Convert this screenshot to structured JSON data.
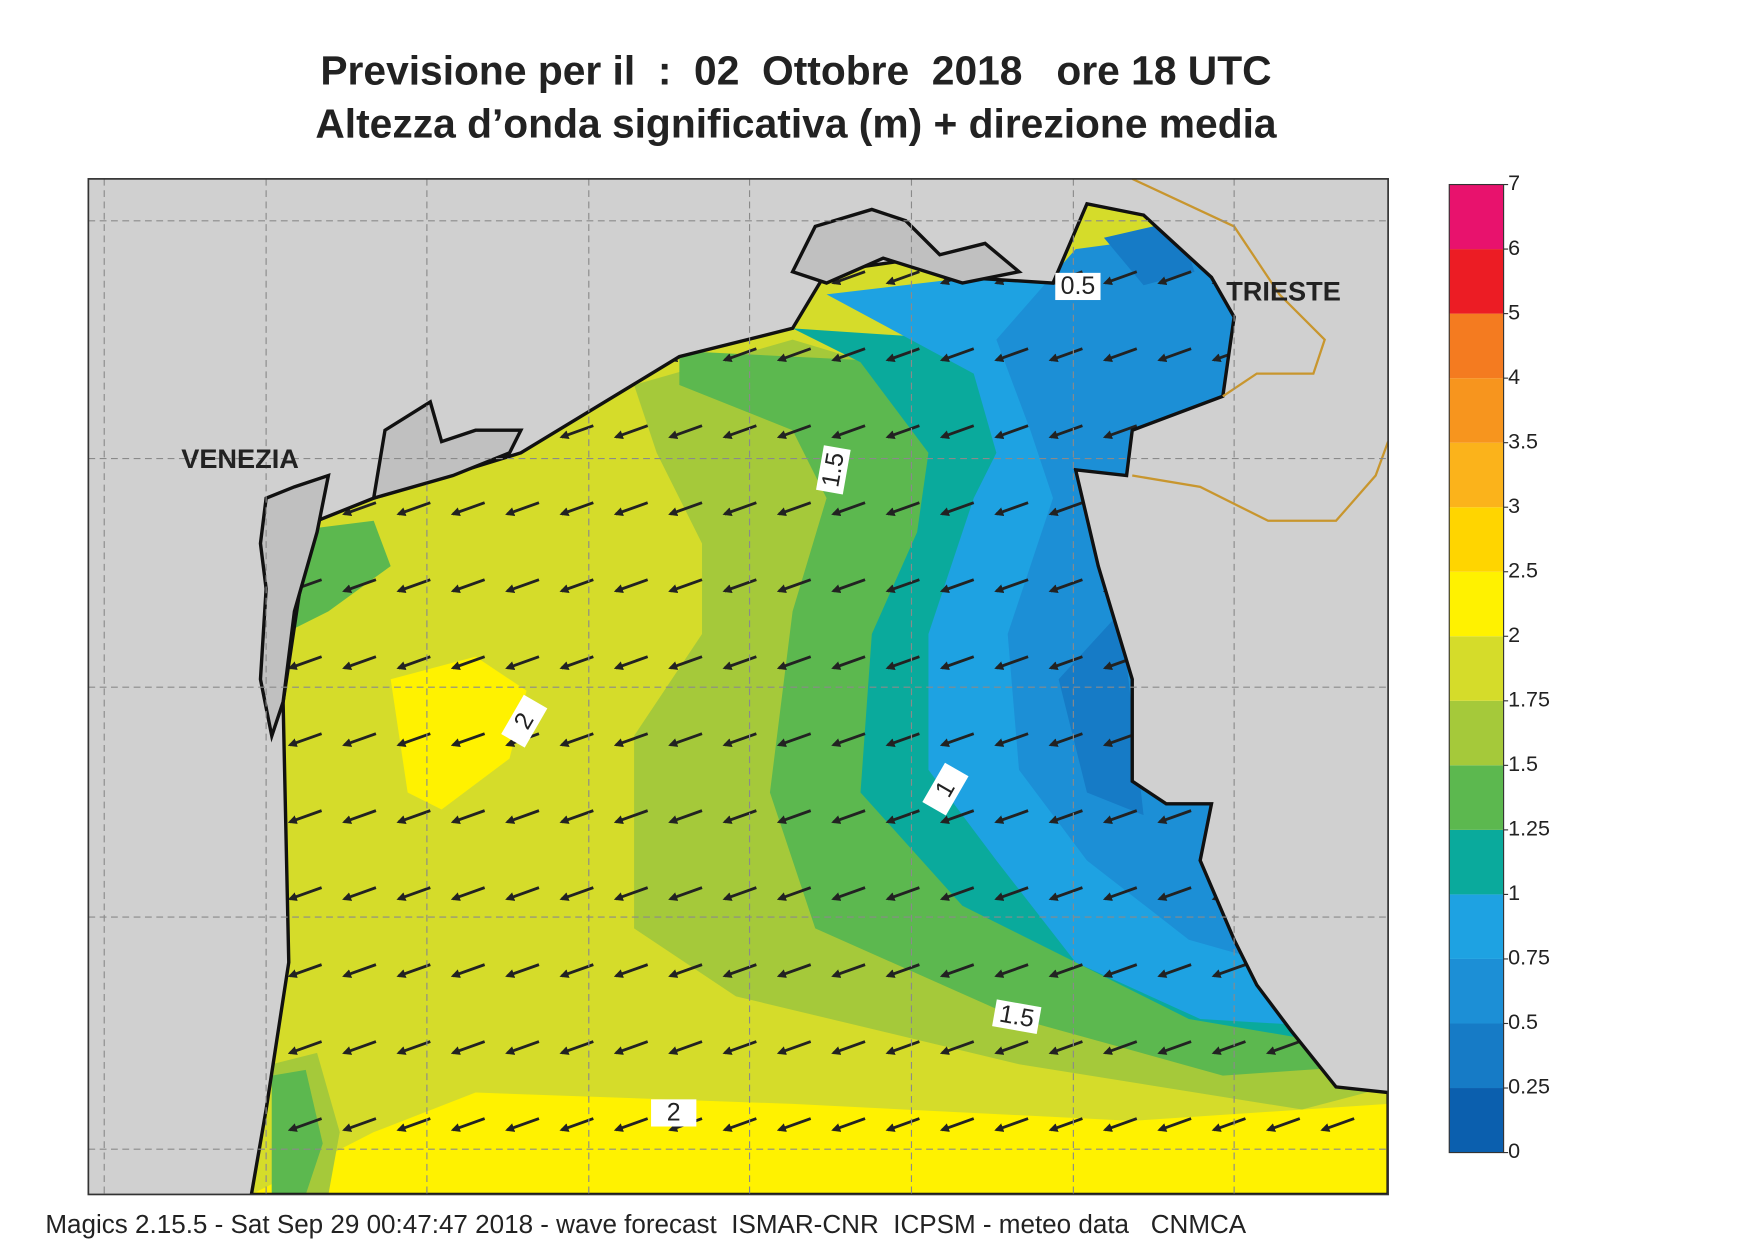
{
  "header": {
    "title": "Previsione per il  :  02  Ottobre  2018   ore 18 UTC",
    "subtitle": "Altezza d’onda significativa (m) + direzione media"
  },
  "map": {
    "places": [
      "VENEZIA",
      "TRIESTE"
    ],
    "contour_labels": [
      0.5,
      1.5,
      1,
      2,
      1.5,
      2
    ]
  },
  "colorbar": {
    "levels": [
      0,
      0.25,
      0.5,
      0.75,
      1,
      1.25,
      1.5,
      1.75,
      2,
      2.5,
      3,
      3.5,
      4,
      5,
      6,
      7
    ],
    "colors": [
      "#0b5fae",
      "#167bc6",
      "#1c8fd6",
      "#1ea2e2",
      "#0aaa9c",
      "#5cb84f",
      "#a5c93a",
      "#d5dc2a",
      "#fff200",
      "#ffd500",
      "#fbb31b",
      "#f7951e",
      "#f47b20",
      "#ec1c24",
      "#e8126d"
    ]
  },
  "footer": "Magics 2.15.5 - Sat Sep 29 00:47:47 2018 - wave forecast  ISMAR-CNR  ICPSM - meteo data   CNMCA"
}
